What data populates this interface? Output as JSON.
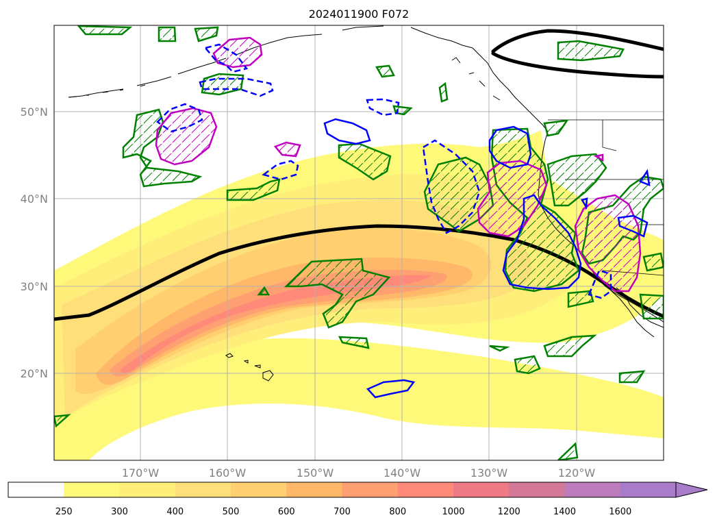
{
  "title": "2024011900 F072",
  "lat_labels": [
    "50°N",
    "40°N",
    "30°N",
    "20°N"
  ],
  "lon_labels": [
    "170°W",
    "160°W",
    "150°W",
    "140°W",
    "130°W",
    "120°W"
  ],
  "colorbar": {
    "ticks": [
      "250",
      "300",
      "400",
      "500",
      "600",
      "700",
      "800",
      "1000",
      "1200",
      "1400",
      "1600"
    ],
    "colors": [
      "#ffffff",
      "#fff97a",
      "#ffef7a",
      "#ffdf7a",
      "#ffcf70",
      "#ffb86a",
      "#ffa072",
      "#ff8a7a",
      "#ee7a86",
      "#d47898",
      "#bc7cbc",
      "#a87cc8"
    ],
    "extend": "max"
  },
  "legend_colors": {
    "jet_contour": "#000000",
    "green_hatch": "#008000",
    "blue_contour": "#0000ff",
    "magenta_contour": "#c000c0"
  }
}
